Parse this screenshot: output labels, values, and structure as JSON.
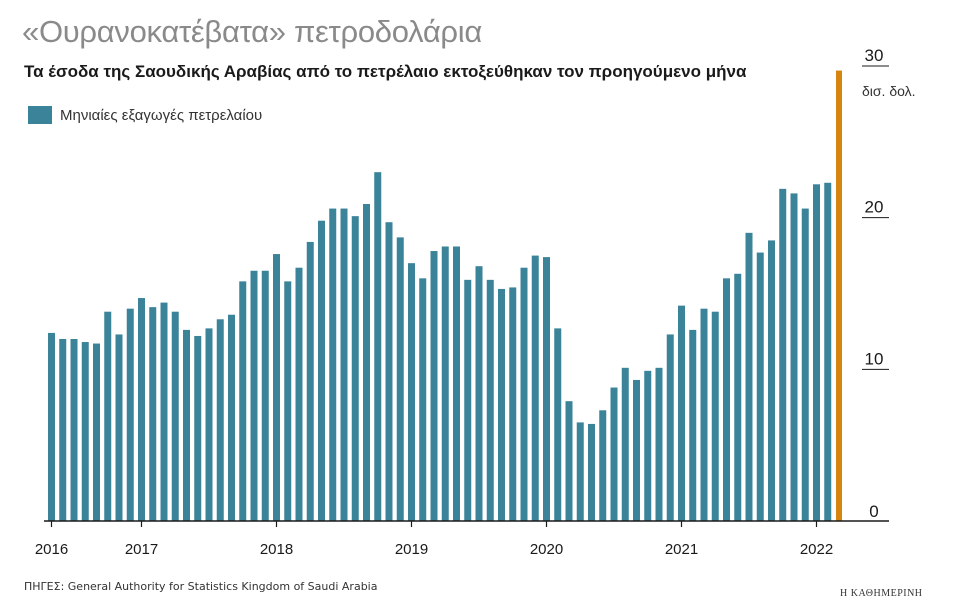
{
  "title": "«Ουρανοκατέβατα» πετροδολάρια",
  "subtitle": "Τα έσοδα της Σαουδικής Αραβίας από το πετρέλαιο εκτοξεύθηκαν τον προηγούμενο μήνα",
  "legend_label": "Μηνιαίες εξαγωγές πετρελαίου",
  "unit": "δισ. δολ.",
  "source": "ΠΗΓΕΣ: General Authority for Statistics Kingdom of Saudi Arabia",
  "brand": "Η ΚΑΘΗΜΕΡΙΝΗ",
  "colors": {
    "bar": "#3a8399",
    "highlight": "#d4860f",
    "axis": "#1a1a1a"
  },
  "chart_data": {
    "type": "bar",
    "title": "«Ουρανοκατέβατα» πετροδολάρια",
    "ylabel": "δισ. δολ.",
    "ylim": [
      0,
      30
    ],
    "yticks": [
      0,
      10,
      20,
      30
    ],
    "x_tick_labels": [
      "2016",
      "2017",
      "2018",
      "2019",
      "2020",
      "2021",
      "2022"
    ],
    "series": [
      {
        "name": "Μηνιαίες εξαγωγές πετρελαίου",
        "values": [
          12.4,
          12.0,
          12.0,
          11.8,
          11.7,
          13.8,
          12.3,
          14.0,
          14.7,
          14.1,
          14.4,
          13.8,
          12.6,
          12.2,
          12.7,
          13.3,
          13.6,
          15.8,
          16.5,
          16.5,
          17.6,
          15.8,
          16.7,
          18.4,
          19.8,
          20.6,
          20.6,
          20.1,
          20.9,
          23.0,
          19.7,
          18.7,
          17.0,
          16.0,
          17.8,
          18.1,
          18.1,
          15.9,
          16.8,
          15.9,
          15.3,
          15.4,
          16.7,
          17.5,
          17.4,
          12.7,
          7.9,
          6.5,
          6.4,
          7.3,
          8.8,
          10.1,
          9.3,
          9.9,
          10.1,
          12.3,
          14.2,
          12.6,
          14.0,
          13.8,
          16.0,
          16.3,
          19.0,
          17.7,
          18.5,
          21.9,
          21.6,
          20.6,
          22.2,
          22.3
        ],
        "color": "#3a8399"
      },
      {
        "values": [
          29.7
        ],
        "color": "#d4860f"
      }
    ],
    "grid": false
  }
}
